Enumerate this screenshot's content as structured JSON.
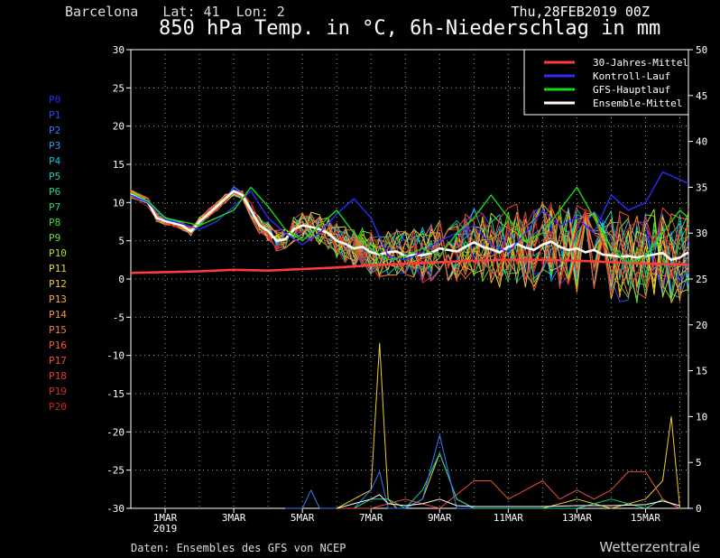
{
  "header": {
    "location": "Barcelona   Lat: 41  Lon: 2",
    "date": "Thu,28FEB2019 00Z",
    "title": "850 hPa Temp. in °C, 6h-Niederschlag in mm"
  },
  "footer": {
    "source": "Daten: Ensembles des GFS von NCEP",
    "brand": "Wetterzentrale"
  },
  "chart_data": {
    "type": "line",
    "title": "850 hPa Temp. in °C, 6h-Niederschlag in mm",
    "left_axis": {
      "ylim": [
        -30,
        30
      ],
      "ticks": [
        "30",
        "25",
        "20",
        "15",
        "10",
        "5",
        "0",
        "-5",
        "-10",
        "-15",
        "-20",
        "-25",
        "-30"
      ]
    },
    "right_axis": {
      "ylim": [
        0,
        50
      ],
      "ticks": [
        "50",
        "45",
        "40",
        "35",
        "30",
        "25",
        "20",
        "15",
        "10",
        "5",
        "0"
      ]
    },
    "x_ticks": [
      "1MAR",
      "3MAR",
      "5MAR",
      "7MAR",
      "9MAR",
      "11MAR",
      "13MAR",
      "15MAR"
    ],
    "x_sub_label": "2019",
    "x_units": "days from 28FEB2019 00Z",
    "xlim": [
      0,
      16.25
    ],
    "grid": true,
    "legend": {
      "placement": "top-right",
      "entries": [
        {
          "name": "30-Jahres-Mittel",
          "color": "#ff3b3b"
        },
        {
          "name": "Kontroll-Lauf",
          "color": "#2b2bff"
        },
        {
          "name": "GFS-Hauptlauf",
          "color": "#16d916"
        },
        {
          "name": "Ensemble-Mittel",
          "color": "#ffffff"
        }
      ]
    },
    "members": [
      {
        "name": "P0",
        "color": "#2a2aff"
      },
      {
        "name": "P1",
        "color": "#2f4cff"
      },
      {
        "name": "P2",
        "color": "#2f7cff"
      },
      {
        "name": "P3",
        "color": "#1ea3f0"
      },
      {
        "name": "P4",
        "color": "#17bfd8"
      },
      {
        "name": "P5",
        "color": "#18d0b4"
      },
      {
        "name": "P6",
        "color": "#1bd68c"
      },
      {
        "name": "P7",
        "color": "#25d860"
      },
      {
        "name": "P8",
        "color": "#42d82f"
      },
      {
        "name": "P9",
        "color": "#74dc2a"
      },
      {
        "name": "P10",
        "color": "#a8df28"
      },
      {
        "name": "P11",
        "color": "#e0e02a"
      },
      {
        "name": "P12",
        "color": "#f0cd2a"
      },
      {
        "name": "P13",
        "color": "#f4b22c"
      },
      {
        "name": "P14",
        "color": "#f59530"
      },
      {
        "name": "P15",
        "color": "#f57a33"
      },
      {
        "name": "P16",
        "color": "#f26436"
      },
      {
        "name": "P17",
        "color": "#ee5035"
      },
      {
        "name": "P18",
        "color": "#e43d33"
      },
      {
        "name": "P19",
        "color": "#d82e2e"
      },
      {
        "name": "P20",
        "color": "#c92525"
      }
    ],
    "series": [
      {
        "name": "30-Jahres-Mittel",
        "color": "#ff3b3b",
        "x": [
          0,
          1,
          2,
          3,
          4,
          5,
          6,
          7,
          8,
          9,
          10,
          11,
          12,
          13,
          14,
          15,
          16,
          16.25
        ],
        "y": [
          0.8,
          0.9,
          1.0,
          1.2,
          1.1,
          1.3,
          1.5,
          1.8,
          2.0,
          2.2,
          2.4,
          2.5,
          2.5,
          2.4,
          2.2,
          2.0,
          1.9,
          1.9
        ]
      },
      {
        "name": "Ensemble-Mittel",
        "color": "#ffffff",
        "x": [
          0,
          0.5,
          0.75,
          1,
          1.25,
          1.5,
          1.75,
          2,
          2.25,
          2.5,
          2.75,
          3,
          3.25,
          3.5,
          3.75,
          4,
          4.25,
          4.5,
          4.75,
          5,
          5.25,
          5.5,
          5.75,
          6,
          6.25,
          6.5,
          6.75,
          7,
          7.25,
          7.5,
          7.75,
          8,
          8.25,
          8.5,
          8.75,
          9,
          9.25,
          9.5,
          9.75,
          10,
          10.25,
          10.5,
          10.75,
          11,
          11.25,
          11.5,
          11.75,
          12,
          12.25,
          12.5,
          12.75,
          13,
          13.25,
          13.5,
          13.75,
          14,
          14.25,
          14.5,
          14.75,
          15,
          15.25,
          15.5,
          15.75,
          16,
          16.25
        ],
        "y": [
          11.2,
          10,
          8,
          7.6,
          7.3,
          7.0,
          6.2,
          7.5,
          8.5,
          9.5,
          10.5,
          11.5,
          11,
          9,
          7,
          6.3,
          5,
          5.2,
          6.5,
          7,
          6.8,
          6.5,
          6,
          5,
          4.6,
          4,
          4.2,
          3.5,
          3.2,
          3.5,
          3.6,
          3,
          3.2,
          3.1,
          3.4,
          4,
          3.8,
          3.6,
          4.2,
          4.8,
          4.2,
          3.9,
          3.5,
          4.2,
          4.6,
          4.1,
          3.8,
          4.5,
          4.9,
          4.2,
          3.8,
          4.0,
          3.5,
          3.8,
          3.2,
          3.1,
          2.9,
          3.0,
          2.8,
          3.0,
          3.2,
          3.4,
          2.5,
          2.8,
          3.5
        ]
      },
      {
        "name": "Kontroll-Lauf",
        "color": "#2b2bff",
        "x": [
          0,
          0.5,
          1,
          1.5,
          2,
          2.5,
          3,
          3.5,
          4,
          4.5,
          5,
          5.5,
          6,
          6.5,
          7,
          7.5,
          8,
          8.5,
          9,
          9.5,
          10,
          10.5,
          11,
          11.5,
          12,
          12.5,
          13,
          13.5,
          14,
          14.5,
          15,
          15.5,
          16,
          16.25
        ],
        "y": [
          11,
          10,
          7.8,
          7.2,
          6.5,
          7.5,
          9.5,
          11.5,
          8,
          6,
          4.5,
          6,
          8.5,
          10.5,
          8,
          3,
          2.5,
          3.5,
          5,
          6,
          7,
          4.5,
          3.5,
          6,
          9,
          7,
          8,
          6,
          11,
          9,
          10,
          14,
          13,
          12.5
        ]
      },
      {
        "name": "GFS-Hauptlauf",
        "color": "#16d916",
        "x": [
          0,
          0.5,
          1,
          1.5,
          2,
          2.5,
          3,
          3.5,
          4,
          4.5,
          5,
          5.5,
          6,
          6.5,
          7,
          7.5,
          8,
          8.5,
          9,
          9.5,
          10,
          10.5,
          11,
          11.5,
          12,
          12.5,
          13,
          13.5,
          14,
          14.5,
          15,
          15.5,
          16,
          16.25
        ],
        "y": [
          11.3,
          10.2,
          8,
          7.5,
          7,
          8,
          9,
          12,
          9.5,
          6.5,
          5,
          7,
          9,
          6,
          4,
          2.5,
          3,
          4,
          3,
          6,
          8,
          11,
          8,
          5,
          6,
          9,
          12,
          8,
          4,
          2,
          3,
          6,
          9,
          8
        ]
      }
    ],
    "precip_series": [
      {
        "name": "P12",
        "color": "#f0cd2a",
        "x": [
          5.5,
          6,
          6.5,
          7,
          7.25,
          7.5,
          7.75,
          8,
          8.5,
          9,
          9.5,
          10,
          11,
          12,
          13,
          14,
          15,
          15.5,
          15.75,
          16
        ],
        "y": [
          0,
          0,
          1,
          2,
          18,
          1,
          0,
          0,
          1,
          6,
          1,
          0,
          0,
          0,
          1,
          0,
          1,
          3,
          10,
          0
        ]
      },
      {
        "name": "P6",
        "color": "#1bd68c",
        "x": [
          5.5,
          6,
          6.5,
          7,
          7.5,
          8,
          8.5,
          9,
          9.5,
          10,
          11,
          12,
          13,
          14,
          15,
          15.5,
          16
        ],
        "y": [
          0,
          0,
          0,
          1,
          1,
          0,
          2,
          6,
          1,
          0,
          0,
          0,
          0,
          1,
          0,
          1,
          0
        ]
      },
      {
        "name": "P2",
        "color": "#2f7cff",
        "x": [
          4.5,
          5,
          5.25,
          5.5,
          6,
          6.5,
          7,
          7.25,
          7.5,
          8,
          8.5,
          9,
          9.5,
          10
        ],
        "y": [
          0,
          0,
          2,
          0,
          0,
          0,
          2,
          4,
          0,
          0,
          1,
          8,
          0,
          0
        ]
      },
      {
        "name": "P17",
        "color": "#ee5035",
        "x": [
          6,
          7,
          8,
          9,
          10,
          10.5,
          11,
          11.5,
          12,
          12.5,
          13,
          13.5,
          14,
          14.5,
          15,
          15.5,
          16
        ],
        "y": [
          0,
          0,
          1,
          0,
          3,
          3,
          1,
          2,
          3,
          1,
          2,
          1,
          2,
          4,
          4,
          1,
          0
        ]
      },
      {
        "name": "Ensemble-Mittel",
        "color": "#ffffff",
        "x": [
          6,
          6.5,
          7,
          7.25,
          7.5,
          8,
          8.5,
          9,
          9.5,
          10,
          11,
          12,
          13,
          14,
          15,
          15.5,
          16
        ],
        "y": [
          0,
          0.5,
          1,
          1.5,
          0.5,
          0.3,
          0.5,
          1,
          0.3,
          0.2,
          0.2,
          0.2,
          0.3,
          0.3,
          0.4,
          0.8,
          0.3
        ]
      }
    ]
  }
}
